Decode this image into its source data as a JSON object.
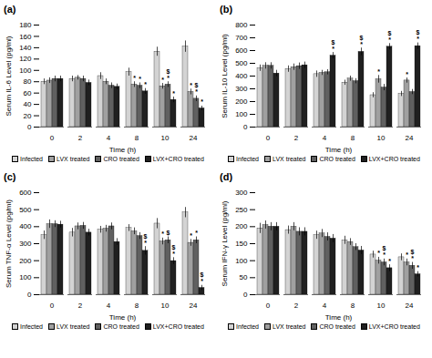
{
  "chart_data": [
    {
      "type": "bar",
      "title": "(a)",
      "xlabel": "Time (h)",
      "ylabel": "Serum IL-6 Level (pg/ml)",
      "categories": [
        "0",
        "2",
        "4",
        "8",
        "10",
        "24"
      ],
      "ylim": [
        0,
        180
      ],
      "yticks": [
        0,
        20,
        40,
        60,
        80,
        100,
        120,
        140,
        160,
        180
      ],
      "grid": false,
      "legend": "bottom",
      "series": [
        {
          "name": "Infected",
          "color": "#d3d3d3",
          "values": [
            80,
            85,
            90,
            97,
            133,
            142
          ],
          "errors": [
            5,
            5,
            6,
            7,
            8,
            10
          ]
        },
        {
          "name": "LVX treated",
          "color": "#a0a0a0",
          "values": [
            82,
            87,
            80,
            75,
            72,
            62
          ],
          "errors": [
            5,
            4,
            5,
            5,
            5,
            5
          ]
        },
        {
          "name": "CRO treated",
          "color": "#606060",
          "values": [
            85,
            85,
            73,
            73,
            75,
            50
          ],
          "errors": [
            5,
            5,
            5,
            5,
            5,
            5
          ]
        },
        {
          "name": "LVX+CRO treated",
          "color": "#202020",
          "values": [
            85,
            78,
            71,
            63,
            48,
            33
          ],
          "errors": [
            5,
            5,
            5,
            5,
            5,
            4
          ]
        }
      ],
      "annotations": [
        {
          "category": "8",
          "series": "LVX treated",
          "text": "*"
        },
        {
          "category": "8",
          "series": "CRO treated",
          "text": "*"
        },
        {
          "category": "8",
          "series": "LVX+CRO treated",
          "text": "*"
        },
        {
          "category": "10",
          "series": "LVX treated",
          "text": "*"
        },
        {
          "category": "10",
          "series": "CRO treated",
          "text": "*"
        },
        {
          "category": "10",
          "series": "CRO treated",
          "text": "$"
        },
        {
          "category": "10",
          "series": "LVX+CRO treated",
          "text": "*"
        },
        {
          "category": "24",
          "series": "LVX treated",
          "text": "*"
        },
        {
          "category": "24",
          "series": "CRO treated",
          "text": "*"
        },
        {
          "category": "24",
          "series": "CRO treated",
          "text": "$"
        },
        {
          "category": "24",
          "series": "LVX+CRO treated",
          "text": "*"
        }
      ]
    },
    {
      "type": "bar",
      "title": "(b)",
      "xlabel": "Time (h)",
      "ylabel": "Serum IL-10 Level (pg/ml)",
      "categories": [
        "0",
        "2",
        "4",
        "8",
        "10",
        "24"
      ],
      "ylim": [
        0,
        800
      ],
      "yticks": [
        0,
        100,
        200,
        300,
        400,
        500,
        600,
        700,
        800
      ],
      "grid": false,
      "legend": "bottom",
      "series": [
        {
          "name": "Infected",
          "color": "#d3d3d3",
          "values": [
            462,
            455,
            415,
            348,
            250,
            260
          ],
          "errors": [
            25,
            25,
            25,
            20,
            20,
            20
          ]
        },
        {
          "name": "LVX treated",
          "color": "#a0a0a0",
          "values": [
            480,
            470,
            425,
            380,
            375,
            365
          ],
          "errors": [
            25,
            25,
            20,
            20,
            30,
            20
          ]
        },
        {
          "name": "CRO treated",
          "color": "#606060",
          "values": [
            480,
            478,
            430,
            360,
            310,
            275
          ],
          "errors": [
            25,
            25,
            20,
            20,
            25,
            20
          ]
        },
        {
          "name": "LVX+CRO treated",
          "color": "#202020",
          "values": [
            420,
            485,
            560,
            590,
            630,
            635
          ],
          "errors": [
            25,
            25,
            25,
            30,
            25,
            25
          ]
        }
      ],
      "annotations": [
        {
          "category": "4",
          "series": "LVX+CRO treated",
          "text": "*"
        },
        {
          "category": "4",
          "series": "LVX+CRO treated",
          "text": "$"
        },
        {
          "category": "8",
          "series": "LVX+CRO treated",
          "text": "*"
        },
        {
          "category": "8",
          "series": "LVX+CRO treated",
          "text": "$"
        },
        {
          "category": "10",
          "series": "LVX treated",
          "text": "*"
        },
        {
          "category": "10",
          "series": "LVX+CRO treated",
          "text": "*"
        },
        {
          "category": "10",
          "series": "LVX+CRO treated",
          "text": "$"
        },
        {
          "category": "24",
          "series": "LVX treated",
          "text": "*"
        },
        {
          "category": "24",
          "series": "LVX+CRO treated",
          "text": "*"
        },
        {
          "category": "24",
          "series": "LVX+CRO treated",
          "text": "$"
        }
      ]
    },
    {
      "type": "bar",
      "title": "(c)",
      "xlabel": "Time (h)",
      "ylabel": "Serum TNF-α Level (pg/ml)",
      "categories": [
        "0",
        "2",
        "4",
        "8",
        "10",
        "24"
      ],
      "ylim": [
        0,
        600
      ],
      "yticks": [
        0,
        100,
        200,
        300,
        400,
        500,
        600
      ],
      "grid": false,
      "legend": "bottom",
      "series": [
        {
          "name": "Infected",
          "color": "#d3d3d3",
          "values": [
            350,
            365,
            382,
            392,
            418,
            483
          ],
          "errors": [
            25,
            25,
            20,
            20,
            30,
            30
          ]
        },
        {
          "name": "LVX treated",
          "color": "#a0a0a0",
          "values": [
            415,
            402,
            388,
            373,
            313,
            305
          ],
          "errors": [
            25,
            20,
            20,
            20,
            20,
            20
          ]
        },
        {
          "name": "CRO treated",
          "color": "#606060",
          "values": [
            415,
            405,
            402,
            345,
            320,
            320
          ],
          "errors": [
            20,
            20,
            20,
            20,
            20,
            20
          ]
        },
        {
          "name": "LVX+CRO treated",
          "color": "#202020",
          "values": [
            412,
            365,
            310,
            258,
            198,
            40
          ],
          "errors": [
            20,
            20,
            20,
            25,
            20,
            15
          ]
        }
      ],
      "annotations": [
        {
          "category": "8",
          "series": "LVX+CRO treated",
          "text": "*"
        },
        {
          "category": "8",
          "series": "LVX+CRO treated",
          "text": "$"
        },
        {
          "category": "10",
          "series": "LVX treated",
          "text": "*"
        },
        {
          "category": "10",
          "series": "CRO treated",
          "text": "$"
        },
        {
          "category": "10",
          "series": "LVX+CRO treated",
          "text": "*"
        },
        {
          "category": "10",
          "series": "LVX+CRO treated",
          "text": "$"
        },
        {
          "category": "24",
          "series": "LVX treated",
          "text": "*"
        },
        {
          "category": "24",
          "series": "CRO treated",
          "text": "*"
        },
        {
          "category": "24",
          "series": "LVX+CRO treated",
          "text": "*"
        },
        {
          "category": "24",
          "series": "LVX+CRO treated",
          "text": "$"
        }
      ]
    },
    {
      "type": "bar",
      "title": "(d)",
      "xlabel": "Time (h)",
      "ylabel": "Serum IFN-γ Level (pg/ml)",
      "categories": [
        "0",
        "2",
        "4",
        "8",
        "10",
        "24"
      ],
      "ylim": [
        0,
        300
      ],
      "yticks": [
        0,
        50,
        100,
        150,
        200,
        250,
        300
      ],
      "grid": false,
      "legend": "bottom",
      "series": [
        {
          "name": "Infected",
          "color": "#d3d3d3",
          "values": [
            195,
            190,
            175,
            160,
            118,
            110
          ],
          "errors": [
            15,
            12,
            12,
            12,
            10,
            10
          ]
        },
        {
          "name": "LVX treated",
          "color": "#a0a0a0",
          "values": [
            205,
            200,
            180,
            155,
            100,
            95
          ],
          "errors": [
            12,
            12,
            12,
            10,
            10,
            10
          ]
        },
        {
          "name": "CRO treated",
          "color": "#606060",
          "values": [
            200,
            185,
            170,
            140,
            95,
            85
          ],
          "errors": [
            12,
            12,
            12,
            10,
            10,
            10
          ]
        },
        {
          "name": "LVX+CRO treated",
          "color": "#202020",
          "values": [
            200,
            185,
            165,
            130,
            78,
            60
          ],
          "errors": [
            12,
            12,
            12,
            12,
            10,
            8
          ]
        }
      ],
      "annotations": [
        {
          "category": "10",
          "series": "LVX treated",
          "text": "*"
        },
        {
          "category": "10",
          "series": "CRO treated",
          "text": "*"
        },
        {
          "category": "10",
          "series": "CRO treated",
          "text": "$"
        },
        {
          "category": "10",
          "series": "LVX+CRO treated",
          "text": "*"
        },
        {
          "category": "24",
          "series": "LVX treated",
          "text": "*"
        },
        {
          "category": "24",
          "series": "CRO treated",
          "text": "*"
        },
        {
          "category": "24",
          "series": "CRO treated",
          "text": "$"
        },
        {
          "category": "24",
          "series": "LVX+CRO treated",
          "text": "*"
        }
      ]
    }
  ]
}
